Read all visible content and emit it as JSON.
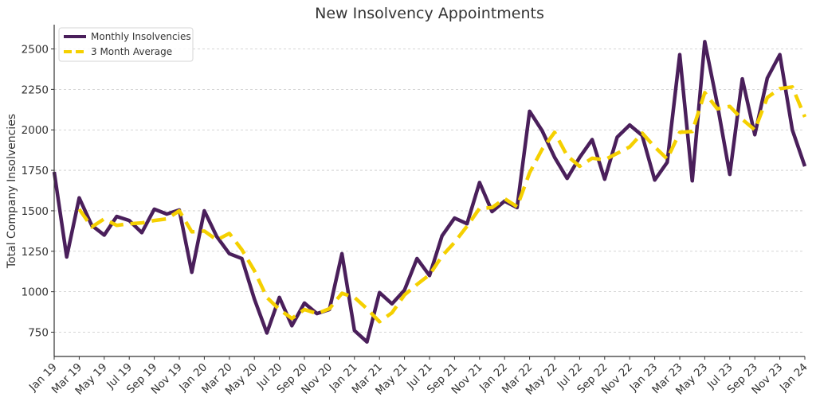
{
  "chart_data": {
    "type": "line",
    "title": "New Insolvency Appointments",
    "ylabel": "Total Company Insolvencies",
    "xlabel": "",
    "ylim": [
      600,
      2650
    ],
    "yticks": [
      750,
      1000,
      1250,
      1500,
      1750,
      2000,
      2250,
      2500
    ],
    "grid": "y-dashed",
    "legend_position": "top-left",
    "x": [
      "Jan 19",
      "Feb 19",
      "Mar 19",
      "Apr 19",
      "May 19",
      "Jun 19",
      "Jul 19",
      "Aug 19",
      "Sep 19",
      "Oct 19",
      "Nov 19",
      "Dec 19",
      "Jan 20",
      "Feb 20",
      "Mar 20",
      "Apr 20",
      "May 20",
      "Jun 20",
      "Jul 20",
      "Aug 20",
      "Sep 20",
      "Oct 20",
      "Nov 20",
      "Dec 20",
      "Jan 21",
      "Feb 21",
      "Mar 21",
      "Apr 21",
      "May 21",
      "Jun 21",
      "Jul 21",
      "Aug 21",
      "Sep 21",
      "Oct 21",
      "Nov 21",
      "Dec 21",
      "Jan 22",
      "Feb 22",
      "Mar 22",
      "Apr 22",
      "May 22",
      "Jun 22",
      "Jul 22",
      "Aug 22",
      "Sep 22",
      "Oct 22",
      "Nov 22",
      "Dec 22",
      "Jan 23",
      "Feb 23",
      "Mar 23",
      "Apr 23",
      "May 23",
      "Jun 23",
      "Jul 23",
      "Aug 23",
      "Sep 23",
      "Oct 23",
      "Nov 23",
      "Dec 23",
      "Jan 24"
    ],
    "xtick_labels": [
      "Jan 19",
      "Mar 19",
      "May 19",
      "Jul 19",
      "Sep 19",
      "Nov 19",
      "Jan 20",
      "Mar 20",
      "May 20",
      "Jul 20",
      "Sep 20",
      "Nov 20",
      "Jan 21",
      "Mar 21",
      "May 21",
      "Jul 21",
      "Sep 21",
      "Nov 21",
      "Jan 22",
      "Mar 22",
      "May 22",
      "Jul 22",
      "Sep 22",
      "Nov 22",
      "Jan 23",
      "Mar 23",
      "May 23",
      "Jul 23",
      "Sep 23",
      "Nov 23",
      "Jan 24"
    ],
    "series": [
      {
        "name": "Monthly Insolvencies",
        "color": "#4a1f5b",
        "style": "solid",
        "values": [
          1740,
          1215,
          1580,
          1410,
          1350,
          1465,
          1440,
          1365,
          1510,
          1480,
          1505,
          1120,
          1500,
          1340,
          1235,
          1205,
          955,
          745,
          965,
          790,
          930,
          865,
          890,
          1235,
          760,
          690,
          995,
          925,
          1010,
          1205,
          1100,
          1345,
          1455,
          1420,
          1675,
          1495,
          1560,
          1520,
          2115,
          1995,
          1830,
          1700,
          1830,
          1940,
          1695,
          1955,
          2030,
          1965,
          1690,
          1800,
          2465,
          1685,
          2545,
          2160,
          1725,
          2315,
          1970,
          2320,
          2465,
          2000,
          1775
        ]
      },
      {
        "name": "3 Month Average",
        "color": "#f5d000",
        "style": "dashed",
        "values": [
          null,
          null,
          1510,
          1400,
          1450,
          1410,
          1420,
          1425,
          1440,
          1450,
          1500,
          1370,
          1375,
          1320,
          1360,
          1260,
          1130,
          965,
          890,
          835,
          890,
          865,
          895,
          990,
          965,
          895,
          815,
          870,
          980,
          1045,
          1105,
          1220,
          1305,
          1405,
          1515,
          1520,
          1575,
          1525,
          1735,
          1880,
          1985,
          1840,
          1775,
          1825,
          1815,
          1855,
          1895,
          1980,
          1895,
          1820,
          1985,
          1990,
          2230,
          2130,
          2145,
          2065,
          2000,
          2200,
          2255,
          2265,
          2080
        ]
      }
    ]
  }
}
